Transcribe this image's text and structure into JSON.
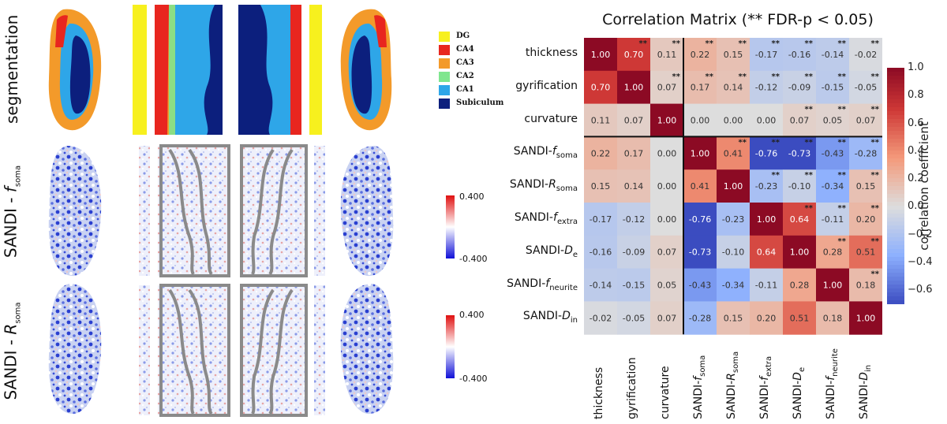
{
  "rows": [
    {
      "label": "segmentation"
    },
    {
      "label_pre": "SANDI - ",
      "label_var": "f",
      "label_sub": "soma"
    },
    {
      "label_pre": "SANDI - ",
      "label_var": "R",
      "label_sub": "soma"
    }
  ],
  "segmentation_legend": [
    {
      "name": "DG",
      "color": "#f7f01e"
    },
    {
      "name": "CA4",
      "color": "#e8261f"
    },
    {
      "name": "CA3",
      "color": "#f39a2a"
    },
    {
      "name": "CA2",
      "color": "#7fe68e"
    },
    {
      "name": "CA1",
      "color": "#2ea6e8"
    },
    {
      "name": "Subiculum",
      "color": "#0c1f7d"
    }
  ],
  "small_colorbars": [
    {
      "max": "0.400",
      "min": "-0.400"
    },
    {
      "max": "0.400",
      "min": "-0.400"
    }
  ],
  "chart_data": {
    "type": "heatmap",
    "title": "Correlation Matrix (** FDR-p < 0.05)",
    "colorbar_label": "correlation coefficient",
    "colorbar_range": [
      -0.7,
      1.0
    ],
    "colorbar_ticks": [
      "1.0",
      "0.8",
      "0.6",
      "0.4",
      "0.2",
      "0.0",
      "−0.2",
      "−0.4",
      "−0.6"
    ],
    "colorbar_tick_values": [
      1.0,
      0.8,
      0.6,
      0.4,
      0.2,
      0.0,
      -0.2,
      -0.4,
      -0.6
    ],
    "labels": [
      {
        "base": "thickness",
        "var": "",
        "sub": ""
      },
      {
        "base": "gyrification",
        "var": "",
        "sub": ""
      },
      {
        "base": "curvature",
        "var": "",
        "sub": ""
      },
      {
        "base": "SANDI-",
        "var": "f",
        "sub": "soma"
      },
      {
        "base": "SANDI-",
        "var": "R",
        "sub": "soma"
      },
      {
        "base": "SANDI-",
        "var": "f",
        "sub": "extra"
      },
      {
        "base": "SANDI-",
        "var": "D",
        "sub": "e"
      },
      {
        "base": "SANDI-",
        "var": "f",
        "sub": "neurite"
      },
      {
        "base": "SANDI-",
        "var": "D",
        "sub": "in"
      }
    ],
    "values": [
      [
        "1.00",
        "0.70",
        "0.11",
        "0.22",
        "0.15",
        "-0.17",
        "-0.16",
        "-0.14",
        "-0.02"
      ],
      [
        "0.70",
        "1.00",
        "0.07",
        "0.17",
        "0.14",
        "-0.12",
        "-0.09",
        "-0.15",
        "-0.05"
      ],
      [
        "0.11",
        "0.07",
        "1.00",
        "0.00",
        "0.00",
        "0.00",
        "0.07",
        "0.05",
        "0.07"
      ],
      [
        "0.22",
        "0.17",
        "0.00",
        "1.00",
        "0.41",
        "-0.76",
        "-0.73",
        "-0.43",
        "-0.28"
      ],
      [
        "0.15",
        "0.14",
        "0.00",
        "0.41",
        "1.00",
        "-0.23",
        "-0.10",
        "-0.34",
        "0.15"
      ],
      [
        "-0.17",
        "-0.12",
        "0.00",
        "-0.76",
        "-0.23",
        "1.00",
        "0.64",
        "-0.11",
        "0.20"
      ],
      [
        "-0.16",
        "-0.09",
        "0.07",
        "-0.73",
        "-0.10",
        "0.64",
        "1.00",
        "0.28",
        "0.51"
      ],
      [
        "-0.14",
        "-0.15",
        "0.05",
        "-0.43",
        "-0.34",
        "-0.11",
        "0.28",
        "1.00",
        "0.18"
      ],
      [
        "-0.02",
        "-0.05",
        "0.07",
        "-0.28",
        "0.15",
        "0.20",
        "0.51",
        "0.18",
        "1.00"
      ]
    ],
    "significance_marker": "**",
    "significant_cells": [
      [
        0,
        1
      ],
      [
        0,
        2
      ],
      [
        0,
        3
      ],
      [
        0,
        4
      ],
      [
        0,
        5
      ],
      [
        0,
        6
      ],
      [
        0,
        7
      ],
      [
        0,
        8
      ],
      [
        1,
        2
      ],
      [
        1,
        3
      ],
      [
        1,
        4
      ],
      [
        1,
        5
      ],
      [
        1,
        6
      ],
      [
        1,
        7
      ],
      [
        1,
        8
      ],
      [
        2,
        6
      ],
      [
        2,
        7
      ],
      [
        2,
        8
      ],
      [
        3,
        4
      ],
      [
        3,
        5
      ],
      [
        3,
        6
      ],
      [
        3,
        7
      ],
      [
        3,
        8
      ],
      [
        4,
        5
      ],
      [
        4,
        6
      ],
      [
        4,
        7
      ],
      [
        4,
        8
      ],
      [
        5,
        6
      ],
      [
        5,
        7
      ],
      [
        5,
        8
      ],
      [
        6,
        7
      ],
      [
        6,
        8
      ],
      [
        7,
        8
      ]
    ]
  }
}
